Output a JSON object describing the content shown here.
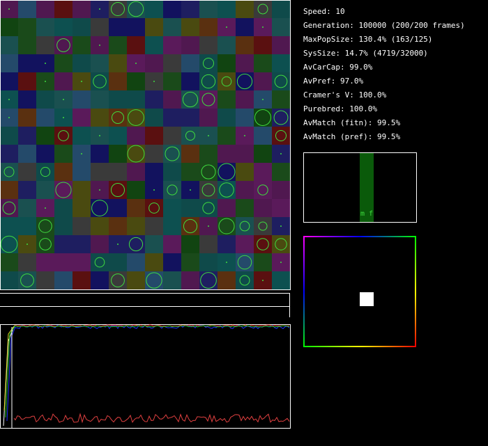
{
  "stats": [
    "Speed: 10",
    "Generation: 100000 (200/200 frames)",
    "MaxPopSize: 130.4% (163/125)",
    "SysSize: 14.7% (4719/32000)",
    "AvCarCap: 99.0%",
    "AvPref: 97.0%",
    "Cramer's V: 100.0%",
    "Purebred: 100.0%",
    "AvMatch (fitn): 99.5%",
    "AvMatch (pref): 99.5%"
  ],
  "histogram": {
    "label": "m f"
  }
}
